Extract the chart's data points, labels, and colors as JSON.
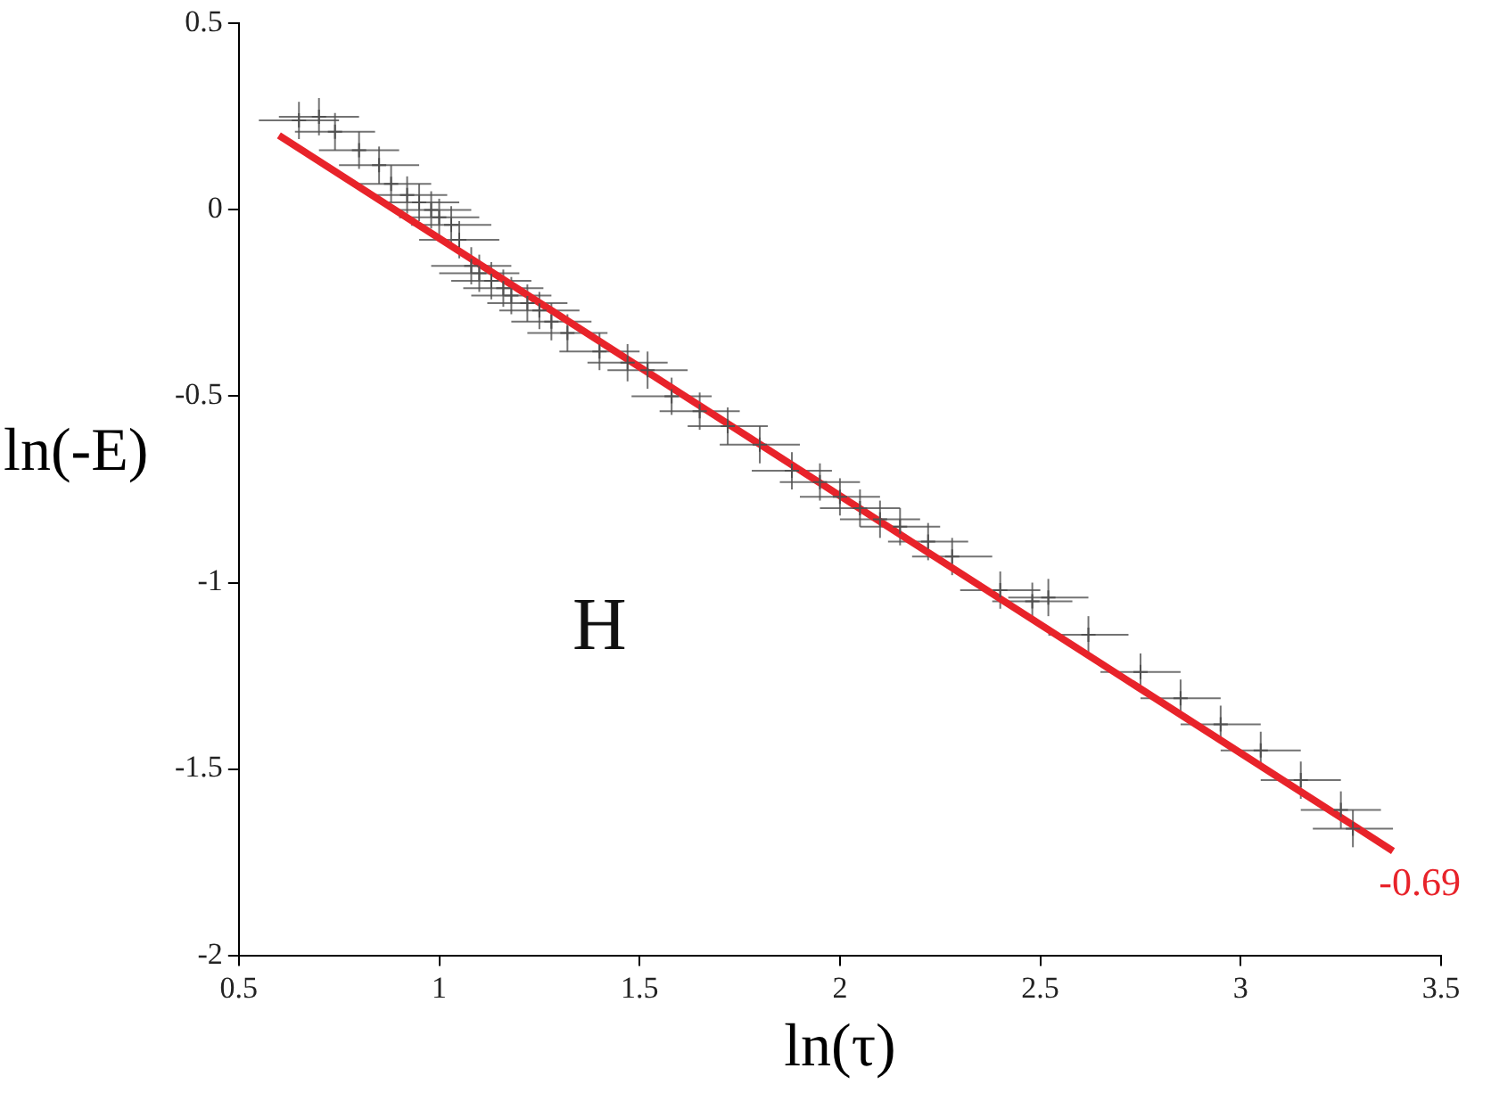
{
  "chart_data": {
    "type": "scatter",
    "xlabel": "ln(τ)",
    "ylabel": "ln(-E)",
    "xlim": [
      0.5,
      3.5
    ],
    "ylim": [
      -2,
      0.5
    ],
    "xticks": [
      0.5,
      1,
      1.5,
      2,
      2.5,
      3,
      3.5
    ],
    "yticks": [
      -2,
      -1.5,
      -1,
      -0.5,
      0,
      0.5
    ],
    "grid": false,
    "legend": false,
    "annotations": [
      "H",
      {
        "text": "-0.69",
        "x": 3.38,
        "y": -1.72
      }
    ],
    "series": [
      {
        "color": "#505050",
        "marker": "cross",
        "x": [
          0.65,
          0.7,
          0.74,
          0.8,
          0.85,
          0.88,
          0.92,
          0.95,
          0.98,
          1.0,
          1.03,
          1.05,
          1.08,
          1.1,
          1.13,
          1.16,
          1.18,
          1.22,
          1.25,
          1.28,
          1.32,
          1.4,
          1.47,
          1.52,
          1.58,
          1.65,
          1.72,
          1.8,
          1.88,
          1.95,
          2.0,
          2.05,
          2.1,
          2.15,
          2.22,
          2.28,
          2.4,
          2.48,
          2.52,
          2.62,
          2.75,
          2.85,
          2.95,
          3.05,
          3.15,
          3.25,
          3.28
        ],
        "values": [
          0.24,
          0.25,
          0.21,
          0.16,
          0.12,
          0.07,
          0.04,
          0.02,
          0.0,
          -0.02,
          -0.04,
          -0.08,
          -0.15,
          -0.17,
          -0.19,
          -0.21,
          -0.23,
          -0.25,
          -0.27,
          -0.3,
          -0.33,
          -0.38,
          -0.41,
          -0.43,
          -0.5,
          -0.54,
          -0.58,
          -0.63,
          -0.7,
          -0.73,
          -0.77,
          -0.8,
          -0.83,
          -0.85,
          -0.89,
          -0.93,
          -1.02,
          -1.05,
          -1.04,
          -1.14,
          -1.24,
          -1.31,
          -1.38,
          -1.45,
          -1.53,
          -1.61,
          -1.66
        ],
        "errors": [
          0.05,
          0.05,
          0.05,
          0.05,
          0.05,
          0.05,
          0.05,
          0.05,
          0.05,
          0.05,
          0.05,
          0.05,
          0.05,
          0.05,
          0.05,
          0.05,
          0.05,
          0.05,
          0.05,
          0.05,
          0.05,
          0.05,
          0.05,
          0.05,
          0.05,
          0.05,
          0.05,
          0.05,
          0.05,
          0.05,
          0.05,
          0.05,
          0.05,
          0.05,
          0.05,
          0.05,
          0.05,
          0.05,
          0.05,
          0.05,
          0.05,
          0.05,
          0.05,
          0.05,
          0.05,
          0.05,
          0.05
        ],
        "xerrors": [
          0.1,
          0.1,
          0.1,
          0.1,
          0.1,
          0.1,
          0.1,
          0.1,
          0.1,
          0.1,
          0.1,
          0.1,
          0.1,
          0.1,
          0.1,
          0.1,
          0.1,
          0.1,
          0.1,
          0.1,
          0.1,
          0.1,
          0.1,
          0.1,
          0.1,
          0.1,
          0.1,
          0.1,
          0.1,
          0.1,
          0.1,
          0.1,
          0.1,
          0.1,
          0.1,
          0.1,
          0.1,
          0.1,
          0.1,
          0.1,
          0.1,
          0.1,
          0.1,
          0.1,
          0.1,
          0.1,
          0.1
        ]
      },
      {
        "type": "line",
        "color": "#e8232a",
        "x": [
          0.6,
          3.38
        ],
        "values": [
          0.2,
          -1.72
        ]
      }
    ]
  }
}
